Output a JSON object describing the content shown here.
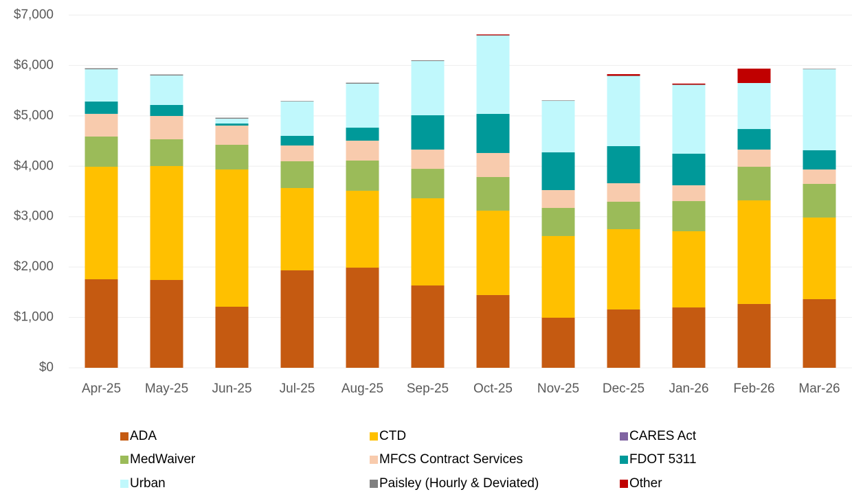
{
  "chart_data": {
    "type": "stacked_bar",
    "categories": [
      "Apr-25",
      "May-25",
      "Jun-25",
      "Jul-25",
      "Aug-25",
      "Sep-25",
      "Oct-25",
      "Nov-25",
      "Dec-25",
      "Jan-26",
      "Feb-26",
      "Mar-26"
    ],
    "series": [
      {
        "name": "ADA",
        "color": "#c55a11",
        "values": [
          1757,
          1743,
          1212,
          1934,
          1988,
          1634,
          1444,
          994,
          1158,
          1198,
          1267,
          1362
        ]
      },
      {
        "name": "CTD",
        "color": "#ffc000",
        "values": [
          2233,
          2261,
          2724,
          1634,
          1526,
          1730,
          1675,
          1621,
          1593,
          1512,
          2056,
          1620
        ]
      },
      {
        "name": "CARES Act",
        "color": "#8064a2",
        "values": [
          0,
          0,
          0,
          0,
          0,
          0,
          0,
          0,
          0,
          0,
          0,
          0
        ]
      },
      {
        "name": "MedWaiver",
        "color": "#9bbb59",
        "values": [
          600,
          531,
          490,
          531,
          599,
          585,
          667,
          558,
          545,
          599,
          667,
          668
        ]
      },
      {
        "name": "MFCS Contract Services",
        "color": "#f8cbad",
        "values": [
          450,
          463,
          381,
          313,
          395,
          382,
          477,
          354,
          367,
          313,
          341,
          286
        ]
      },
      {
        "name": "FDOT 5311",
        "color": "#009999",
        "values": [
          245,
          218,
          41,
          191,
          258,
          681,
          776,
          749,
          736,
          627,
          408,
          381
        ]
      },
      {
        "name": "Urban",
        "color": "#c0f8fc",
        "values": [
          640,
          585,
          95,
          681,
          872,
          1076,
          1552,
          1021,
          1389,
          1362,
          913,
          1607
        ]
      },
      {
        "name": "Paisley (Hourly & Deviated)",
        "color": "#808080",
        "values": [
          20,
          20,
          20,
          10,
          20,
          15,
          10,
          10,
          10,
          10,
          0,
          10
        ]
      },
      {
        "name": "Other",
        "color": "#c00000",
        "values": [
          0,
          0,
          0,
          0,
          0,
          0,
          15,
          0,
          30,
          20,
          286,
          0
        ]
      }
    ],
    "ylim": [
      0,
      7000
    ],
    "yticks": [
      {
        "value": 0,
        "label": "$0"
      },
      {
        "value": 1000,
        "label": "$1,000"
      },
      {
        "value": 2000,
        "label": "$2,000"
      },
      {
        "value": 3000,
        "label": "$3,000"
      },
      {
        "value": 4000,
        "label": "$4,000"
      },
      {
        "value": 5000,
        "label": "$5,000"
      },
      {
        "value": 6000,
        "label": "$6,000"
      },
      {
        "value": 7000,
        "label": "$7,000"
      }
    ],
    "grid": true
  }
}
